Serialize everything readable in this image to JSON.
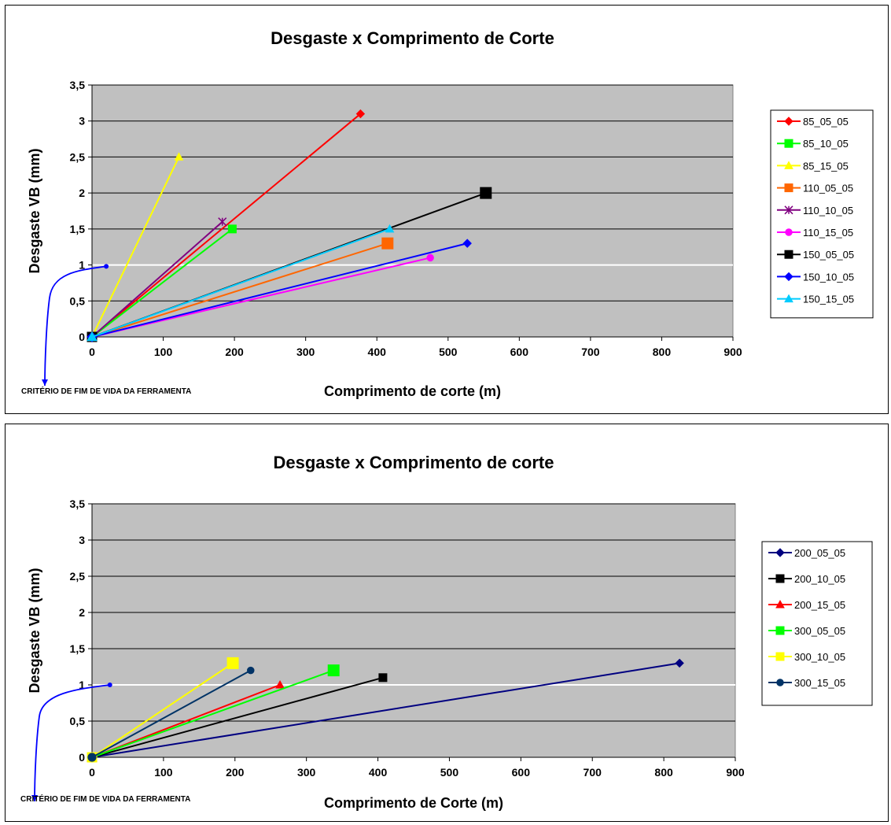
{
  "chart_data": [
    {
      "type": "line",
      "title": "Desgaste x Comprimento de Corte",
      "xlabel": "Comprimento de corte (m)",
      "ylabel": "Desgaste VB  (mm)",
      "xlim": [
        0,
        900
      ],
      "ylim": [
        0,
        3.5
      ],
      "xticks": [
        "0",
        "100",
        "200",
        "300",
        "400",
        "500",
        "600",
        "700",
        "800",
        "900"
      ],
      "yticks": [
        "0",
        "0,5",
        "1",
        "1,5",
        "2",
        "2,5",
        "3",
        "3,5"
      ],
      "grid": true,
      "legend_position": "right",
      "plot_background": "#c0c0c0",
      "threshold_line": {
        "y": 1,
        "color": "#ffffff"
      },
      "annotation": {
        "text": "CRITÉRIO DE FIM DE VIDA DA FERRAMENTA",
        "arrow_color": "#0000ff",
        "point": [
          20,
          0.98
        ]
      },
      "series": [
        {
          "name": "85_05_05",
          "color": "#ff0000",
          "marker": "diamond",
          "x": [
            0,
            377
          ],
          "y": [
            0,
            3.1
          ]
        },
        {
          "name": "85_10_05",
          "color": "#00ff00",
          "marker": "square",
          "x": [
            0,
            197
          ],
          "y": [
            0,
            1.5
          ]
        },
        {
          "name": "85_15_05",
          "color": "#ffff00",
          "marker": "triangle",
          "x": [
            0,
            122
          ],
          "y": [
            0,
            2.5
          ]
        },
        {
          "name": "110_05_05",
          "color": "#ff6600",
          "marker": "square",
          "x": [
            0,
            415
          ],
          "y": [
            0,
            1.3
          ]
        },
        {
          "name": "110_10_05",
          "color": "#800080",
          "marker": "star",
          "x": [
            0,
            183
          ],
          "y": [
            0,
            1.6
          ]
        },
        {
          "name": "110_15_05",
          "color": "#ff00ff",
          "marker": "circle",
          "x": [
            0,
            475
          ],
          "y": [
            0,
            1.1
          ]
        },
        {
          "name": "150_05_05",
          "color": "#000000",
          "marker": "square",
          "x": [
            0,
            553
          ],
          "y": [
            0,
            2.0
          ]
        },
        {
          "name": "150_10_05",
          "color": "#0000ff",
          "marker": "diamond",
          "x": [
            0,
            527
          ],
          "y": [
            0,
            1.3
          ]
        },
        {
          "name": "150_15_05",
          "color": "#00ccff",
          "marker": "triangle",
          "x": [
            0,
            418
          ],
          "y": [
            0,
            1.5
          ]
        }
      ]
    },
    {
      "type": "line",
      "title": "Desgaste x Comprimento de corte",
      "xlabel": "Comprimento de Corte (m)",
      "ylabel": "Desgaste VB  (mm)",
      "xlim": [
        0,
        900
      ],
      "ylim": [
        0,
        3.5
      ],
      "xticks": [
        "0",
        "100",
        "200",
        "300",
        "400",
        "500",
        "600",
        "700",
        "800",
        "900"
      ],
      "yticks": [
        "0",
        "0,5",
        "1",
        "1,5",
        "2",
        "2,5",
        "3",
        "3,5"
      ],
      "grid": true,
      "legend_position": "right",
      "plot_background": "#c0c0c0",
      "threshold_line": {
        "y": 1,
        "color": "#ffffff"
      },
      "annotation": {
        "text": "CRITÉRIO DE FIM DE VIDA DA FERRAMENTA",
        "arrow_color": "#0000ff",
        "point": [
          25,
          1.0
        ]
      },
      "series": [
        {
          "name": "200_05_05",
          "color": "#000080",
          "marker": "diamond",
          "x": [
            0,
            822
          ],
          "y": [
            0,
            1.3
          ]
        },
        {
          "name": "200_10_05",
          "color": "#000000",
          "marker": "square",
          "x": [
            0,
            407
          ],
          "y": [
            0,
            1.1
          ]
        },
        {
          "name": "200_15_05",
          "color": "#ff0000",
          "marker": "triangle",
          "x": [
            0,
            263
          ],
          "y": [
            0,
            1.0
          ]
        },
        {
          "name": "300_05_05",
          "color": "#00ff00",
          "marker": "square",
          "x": [
            0,
            338
          ],
          "y": [
            0,
            1.2
          ]
        },
        {
          "name": "300_10_05",
          "color": "#ffff00",
          "marker": "square",
          "x": [
            0,
            197
          ],
          "y": [
            0,
            1.3
          ]
        },
        {
          "name": "300_15_05",
          "color": "#003366",
          "marker": "circle",
          "x": [
            0,
            222
          ],
          "y": [
            0,
            1.2
          ]
        }
      ]
    }
  ]
}
